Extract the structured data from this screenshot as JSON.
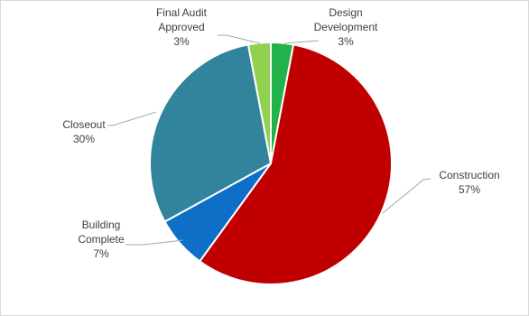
{
  "chart_data": {
    "type": "pie",
    "title": "",
    "start_angle_deg": 0,
    "direction": "clockwise",
    "slices": [
      {
        "label_lines": [
          "Design",
          "Development"
        ],
        "value": 3,
        "value_label": "3%",
        "color": "#21b24b"
      },
      {
        "label_lines": [
          "Construction"
        ],
        "value": 57,
        "value_label": "57%",
        "color": "#c00000"
      },
      {
        "label_lines": [
          "Building",
          "Complete"
        ],
        "value": 7,
        "value_label": "7%",
        "color": "#0f6fc6"
      },
      {
        "label_lines": [
          "Closeout"
        ],
        "value": 30,
        "value_label": "30%",
        "color": "#31849b"
      },
      {
        "label_lines": [
          "Final Audit",
          "Approved"
        ],
        "value": 3,
        "value_label": "3%",
        "color": "#92d050"
      }
    ],
    "slice_border_color": "#ffffff",
    "leader_color": "#a6a6a6",
    "legend": "none"
  }
}
